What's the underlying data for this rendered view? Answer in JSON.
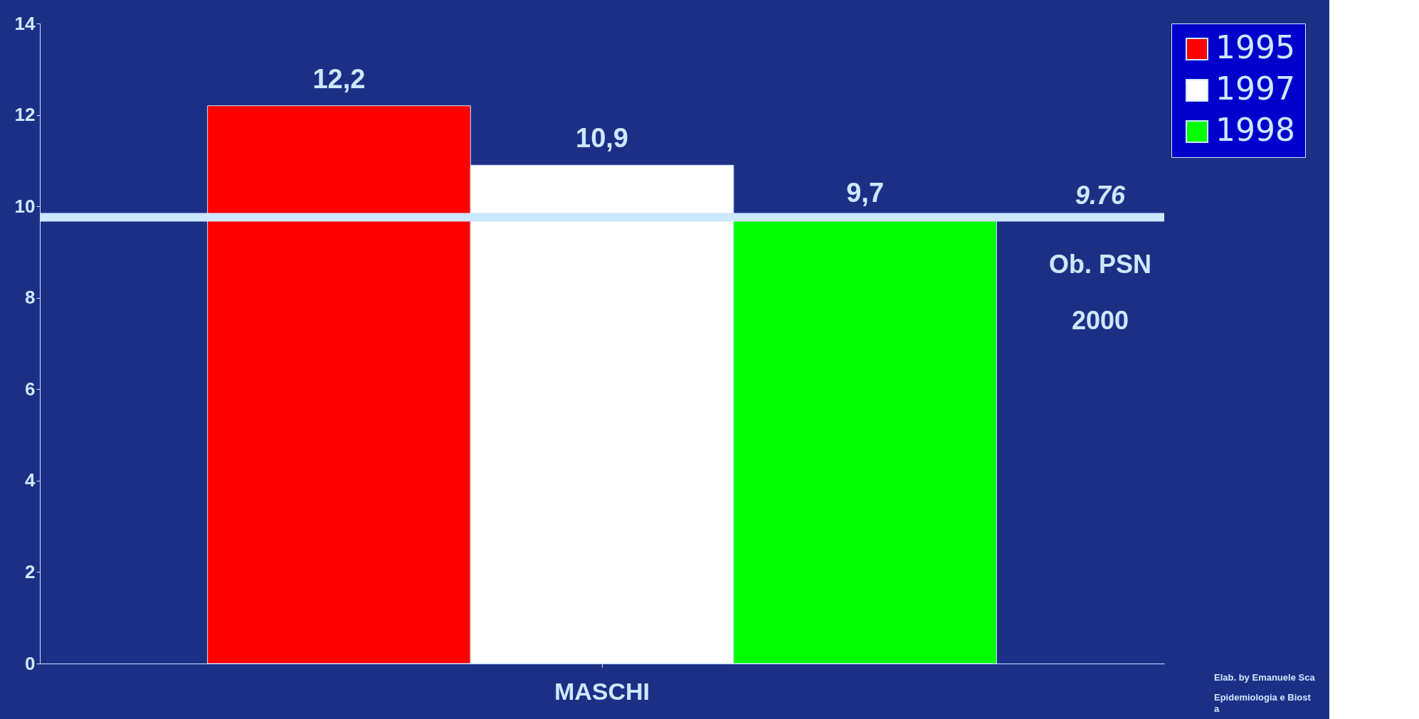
{
  "chart_data": {
    "type": "bar",
    "categories": [
      "MASCHI"
    ],
    "series": [
      {
        "name": "1995",
        "color": "#ff0000",
        "values": [
          12.2
        ],
        "value_labels": [
          "12,2"
        ]
      },
      {
        "name": "1997",
        "color": "#ffffff",
        "values": [
          10.9
        ],
        "value_labels": [
          "10,9"
        ]
      },
      {
        "name": "1998",
        "color": "#00ff00",
        "values": [
          9.7
        ],
        "value_labels": [
          "9,7"
        ]
      }
    ],
    "ylim": [
      0,
      14
    ],
    "yticks": [
      0,
      2,
      4,
      6,
      8,
      10,
      12,
      14
    ],
    "ref_lines": [
      {
        "axis": "y",
        "value": 9.76,
        "label": "9.76",
        "color": "#cce8ff"
      }
    ],
    "annotations": [
      "Ob. PSN 2000",
      "Elab. by Emanuele Sca",
      "Epidemiologia e Biost",
      "a"
    ],
    "grid": false,
    "legend": "right"
  }
}
